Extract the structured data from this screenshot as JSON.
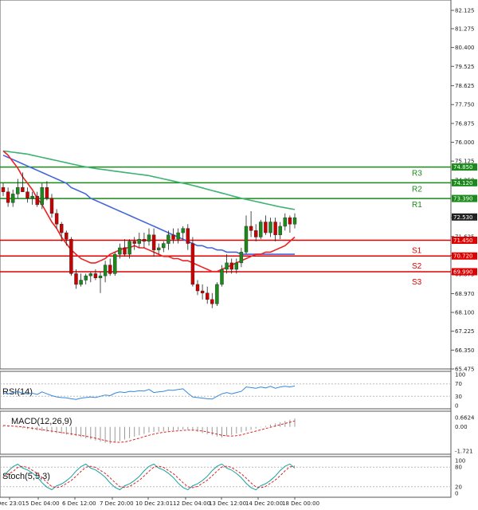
{
  "price_axis": {
    "ticks": [
      "82.125",
      "81.275",
      "80.400",
      "79.525",
      "78.625",
      "77.750",
      "76.875",
      "76.000",
      "75.125",
      "74.250",
      "72.500",
      "71.625",
      "70.750",
      "69.875",
      "68.970",
      "68.100",
      "67.225",
      "66.350",
      "65.475"
    ],
    "tick_values": [
      82.125,
      81.275,
      80.4,
      79.525,
      78.625,
      77.75,
      76.875,
      76.0,
      75.125,
      74.25,
      72.5,
      71.625,
      70.75,
      69.875,
      68.97,
      68.1,
      67.225,
      66.35,
      65.475
    ],
    "range": [
      65.475,
      82.125
    ]
  },
  "levels": [
    {
      "name": "R3",
      "value": 74.85,
      "tag": "74.850",
      "color": "#1a8a1a"
    },
    {
      "name": "R2",
      "value": 74.12,
      "tag": "74.120",
      "color": "#1a8a1a"
    },
    {
      "name": "R1",
      "value": 73.39,
      "tag": "73.390",
      "color": "#1a8a1a"
    },
    {
      "name": "S1",
      "value": 71.45,
      "tag": "71.450",
      "color": "#e00000"
    },
    {
      "name": "S2",
      "value": 70.72,
      "tag": "70.720",
      "color": "#e00000"
    },
    {
      "name": "S3",
      "value": 69.99,
      "tag": "69.990",
      "color": "#e00000"
    }
  ],
  "current_price": {
    "value": 72.53,
    "tag": "72.530"
  },
  "time_axis": [
    "Dec 23:01",
    "5 Dec 04:00",
    "6 Dec 12:00",
    "7 Dec 20:00",
    "10 Dec 23:01",
    "12 Dec 04:00",
    "13 Dec 12:00",
    "14 Dec 20:00",
    "18 Dec 00:00"
  ],
  "chart_data": {
    "type": "candlestick",
    "candles": [
      [
        73.9,
        74.1,
        73.5,
        73.7
      ],
      [
        73.7,
        73.9,
        73.0,
        73.2
      ],
      [
        73.2,
        73.8,
        73.0,
        73.6
      ],
      [
        73.6,
        74.3,
        73.4,
        73.9
      ],
      [
        73.9,
        74.6,
        73.7,
        73.7
      ],
      [
        73.7,
        73.9,
        73.2,
        73.4
      ],
      [
        73.4,
        73.7,
        73.1,
        73.5
      ],
      [
        73.5,
        73.7,
        73.0,
        73.1
      ],
      [
        73.1,
        74.1,
        72.9,
        73.9
      ],
      [
        73.9,
        74.2,
        73.3,
        73.4
      ],
      [
        73.4,
        73.6,
        72.5,
        72.7
      ],
      [
        72.7,
        72.9,
        72.0,
        72.2
      ],
      [
        72.2,
        72.3,
        71.4,
        71.8
      ],
      [
        71.8,
        71.9,
        71.2,
        71.5
      ],
      [
        71.5,
        71.6,
        69.8,
        69.9
      ],
      [
        69.9,
        70.1,
        69.2,
        69.4
      ],
      [
        69.4,
        69.9,
        69.3,
        69.6
      ],
      [
        69.6,
        69.9,
        69.4,
        69.8
      ],
      [
        69.8,
        70.0,
        69.5,
        69.9
      ],
      [
        69.9,
        70.1,
        69.6,
        69.7
      ],
      [
        69.7,
        70.0,
        69.0,
        69.8
      ],
      [
        69.8,
        70.5,
        69.5,
        70.3
      ],
      [
        70.3,
        70.6,
        69.8,
        69.9
      ],
      [
        69.9,
        70.9,
        69.8,
        70.8
      ],
      [
        70.8,
        71.3,
        70.6,
        71.1
      ],
      [
        71.1,
        71.5,
        70.7,
        70.8
      ],
      [
        70.8,
        71.5,
        70.6,
        71.4
      ],
      [
        71.4,
        71.6,
        71.0,
        71.3
      ],
      [
        71.3,
        71.8,
        71.1,
        71.5
      ],
      [
        71.5,
        71.8,
        71.1,
        71.4
      ],
      [
        71.4,
        72.0,
        71.2,
        71.7
      ],
      [
        71.7,
        72.0,
        70.7,
        71.0
      ],
      [
        71.0,
        71.3,
        70.8,
        71.1
      ],
      [
        71.1,
        71.4,
        70.9,
        71.3
      ],
      [
        71.3,
        71.9,
        71.0,
        71.7
      ],
      [
        71.7,
        72.0,
        71.3,
        71.5
      ],
      [
        71.5,
        72.0,
        71.3,
        71.8
      ],
      [
        71.8,
        72.1,
        71.5,
        72.0
      ],
      [
        72.0,
        72.2,
        71.0,
        71.3
      ],
      [
        71.3,
        71.6,
        69.3,
        69.4
      ],
      [
        69.4,
        69.6,
        68.9,
        69.1
      ],
      [
        69.1,
        69.4,
        68.7,
        69.0
      ],
      [
        69.0,
        69.3,
        68.5,
        68.7
      ],
      [
        68.7,
        69.0,
        68.3,
        68.5
      ],
      [
        68.5,
        69.5,
        68.4,
        69.4
      ],
      [
        69.4,
        70.3,
        69.3,
        70.1
      ],
      [
        70.1,
        70.8,
        69.9,
        70.4
      ],
      [
        70.4,
        70.6,
        69.9,
        70.1
      ],
      [
        70.1,
        70.6,
        69.9,
        70.4
      ],
      [
        70.4,
        71.1,
        70.2,
        70.9
      ],
      [
        70.9,
        72.6,
        70.8,
        72.1
      ],
      [
        72.1,
        72.8,
        71.6,
        71.9
      ],
      [
        71.9,
        72.2,
        71.4,
        71.6
      ],
      [
        71.6,
        72.4,
        71.5,
        72.3
      ],
      [
        72.3,
        72.6,
        71.7,
        71.8
      ],
      [
        71.8,
        72.5,
        71.6,
        72.3
      ],
      [
        72.3,
        72.5,
        71.4,
        71.7
      ],
      [
        71.7,
        72.3,
        71.5,
        72.1
      ],
      [
        72.1,
        72.7,
        71.9,
        72.5
      ],
      [
        72.5,
        72.6,
        71.8,
        72.2
      ],
      [
        72.2,
        72.7,
        72.0,
        72.5
      ]
    ],
    "sma_fast": [
      75.6,
      75.4,
      75.1,
      74.8,
      74.4,
      74.1,
      73.8,
      73.4,
      73.1,
      72.7,
      72.3,
      72.0,
      71.6,
      71.3,
      71.0,
      70.8,
      70.6,
      70.5,
      70.4,
      70.4,
      70.5,
      70.6,
      70.8,
      70.9,
      71.0,
      71.1,
      71.1,
      71.2,
      71.1,
      71.1,
      71.0,
      70.9,
      70.8,
      70.7,
      70.7,
      70.6,
      70.6,
      70.5,
      70.5,
      70.4,
      70.3,
      70.2,
      70.1,
      70.0,
      70.0,
      70.1,
      70.2,
      70.3,
      70.4,
      70.5,
      70.6,
      70.7,
      70.8,
      70.8,
      70.9,
      70.9,
      71.0,
      71.1,
      71.2,
      71.4,
      71.6
    ],
    "sma_mid": [
      75.4,
      75.3,
      75.2,
      75.1,
      75.0,
      74.9,
      74.8,
      74.7,
      74.6,
      74.5,
      74.4,
      74.3,
      74.2,
      74.1,
      73.9,
      73.8,
      73.7,
      73.6,
      73.4,
      73.3,
      73.2,
      73.1,
      73.0,
      72.9,
      72.8,
      72.7,
      72.6,
      72.5,
      72.4,
      72.3,
      72.2,
      72.1,
      72.0,
      71.9,
      71.8,
      71.7,
      71.6,
      71.5,
      71.4,
      71.3,
      71.2,
      71.2,
      71.1,
      71.1,
      71.0,
      71.0,
      70.9,
      70.9,
      70.9,
      70.8,
      70.8,
      70.8,
      70.8,
      70.8,
      70.8,
      70.8,
      70.8,
      70.8,
      70.8,
      70.8,
      70.8
    ],
    "sma_slow": [
      75.6,
      75.57,
      75.54,
      75.51,
      75.48,
      75.45,
      75.4,
      75.35,
      75.3,
      75.25,
      75.2,
      75.15,
      75.1,
      75.05,
      75.0,
      74.95,
      74.9,
      74.86,
      74.82,
      74.78,
      74.75,
      74.72,
      74.69,
      74.66,
      74.63,
      74.6,
      74.57,
      74.54,
      74.51,
      74.48,
      74.45,
      74.4,
      74.35,
      74.3,
      74.25,
      74.2,
      74.15,
      74.1,
      74.05,
      74.0,
      73.94,
      73.88,
      73.82,
      73.76,
      73.7,
      73.64,
      73.58,
      73.52,
      73.46,
      73.4,
      73.35,
      73.3,
      73.25,
      73.2,
      73.15,
      73.1,
      73.05,
      73.0,
      72.96,
      72.92,
      72.88
    ]
  },
  "rsi": {
    "title": "RSI(14)",
    "ticks": [
      "100",
      "70",
      "30",
      "0"
    ],
    "values": [
      40,
      38,
      42,
      45,
      40,
      38,
      40,
      36,
      44,
      38,
      32,
      28,
      26,
      25,
      22,
      20,
      24,
      26,
      28,
      26,
      30,
      34,
      32,
      40,
      44,
      42,
      46,
      45,
      48,
      47,
      52,
      42,
      44,
      46,
      50,
      49,
      52,
      54,
      40,
      28,
      26,
      24,
      22,
      21,
      30,
      38,
      42,
      38,
      42,
      46,
      60,
      58,
      56,
      60,
      57,
      62,
      56,
      60,
      62,
      60,
      63
    ]
  },
  "macd": {
    "title": "MACD(12,26,9)",
    "ticks": [
      "0.6624",
      "0.00",
      "-1.721"
    ]
  },
  "stoch": {
    "title": "Stoch(5,5,3)",
    "ticks": [
      "100",
      "80",
      "20",
      "0"
    ]
  }
}
